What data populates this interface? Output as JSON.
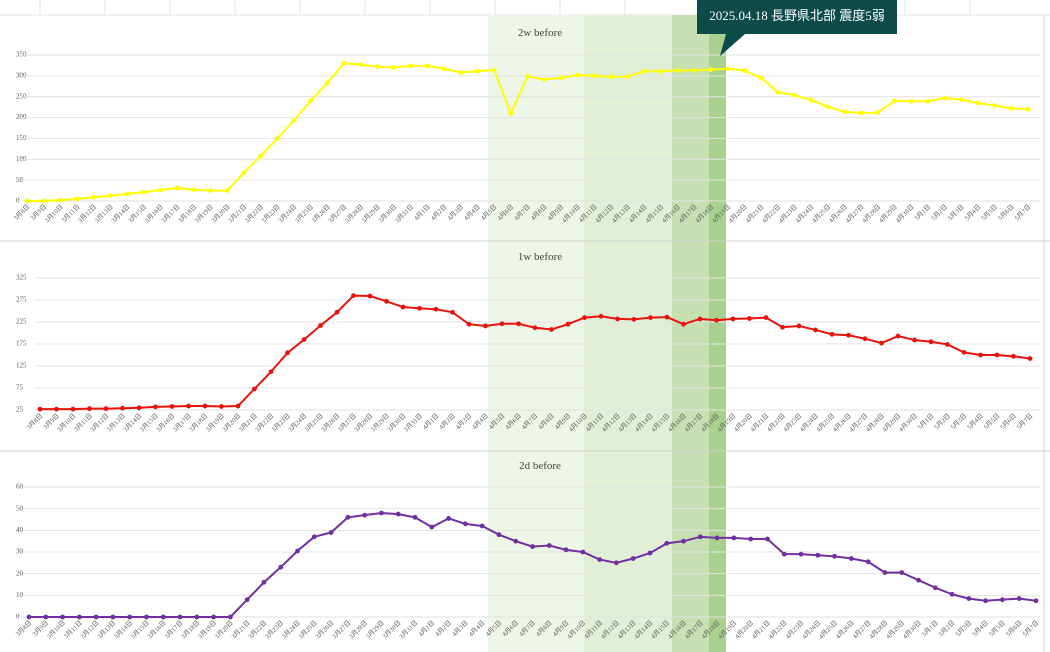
{
  "annotation": "2025.04.18 長野県北部 震度5弱",
  "chart_data": [
    {
      "type": "line",
      "title": "2w before",
      "color": "#ffff00",
      "categories": [
        "3月8日",
        "3月9日",
        "3月10日",
        "3月11日",
        "3月12日",
        "3月13日",
        "3月14日",
        "3月15日",
        "3月16日",
        "3月17日",
        "3月18日",
        "3月19日",
        "3月20日",
        "3月21日",
        "3月22日",
        "3月23日",
        "3月24日",
        "3月25日",
        "3月26日",
        "3月27日",
        "3月28日",
        "3月29日",
        "3月30日",
        "3月31日",
        "4月1日",
        "4月2日",
        "4月3日",
        "4月4日",
        "4月5日",
        "4月6日",
        "4月7日",
        "4月8日",
        "4月9日",
        "4月10日",
        "4月11日",
        "4月12日",
        "4月13日",
        "4月14日",
        "4月15日",
        "4月16日",
        "4月17日",
        "4月18日",
        "4月19日",
        "4月20日",
        "4月21日",
        "4月22日",
        "4月23日",
        "4月24日",
        "4月25日",
        "4月26日",
        "4月27日",
        "4月28日",
        "4月29日",
        "4月30日",
        "5月1日",
        "5月2日",
        "5月3日",
        "5月4日",
        "5月5日",
        "5月6日",
        "5月7日"
      ],
      "values": [
        0,
        0,
        2,
        5,
        9,
        13,
        17,
        21,
        26,
        31,
        27,
        25,
        25,
        68,
        108,
        150,
        193,
        240,
        283,
        330,
        327,
        322,
        320,
        324,
        324,
        317,
        308,
        311,
        314,
        210,
        299,
        291,
        295,
        302,
        300,
        298,
        298,
        311,
        311,
        313,
        313,
        315,
        317,
        313,
        295,
        261,
        254,
        242,
        226,
        214,
        211,
        212,
        240,
        239,
        239,
        247,
        243,
        235,
        229,
        222,
        220
      ],
      "ylim": [
        0,
        350
      ],
      "yticks": [
        0,
        50,
        100,
        150,
        200,
        250,
        300,
        350
      ],
      "grid": true
    },
    {
      "type": "line",
      "title": "1w before",
      "color": "#e8140c",
      "categories": [
        "3月8日",
        "3月9日",
        "3月10日",
        "3月11日",
        "3月12日",
        "3月13日",
        "3月14日",
        "3月15日",
        "3月16日",
        "3月17日",
        "3月18日",
        "3月19日",
        "3月20日",
        "3月21日",
        "3月22日",
        "3月23日",
        "3月24日",
        "3月25日",
        "3月26日",
        "3月27日",
        "3月28日",
        "3月29日",
        "3月30日",
        "3月31日",
        "4月1日",
        "4月2日",
        "4月3日",
        "4月4日",
        "4月5日",
        "4月6日",
        "4月7日",
        "4月8日",
        "4月9日",
        "4月10日",
        "4月11日",
        "4月12日",
        "4月13日",
        "4月14日",
        "4月15日",
        "4月16日",
        "4月17日",
        "4月18日",
        "4月19日",
        "4月20日",
        "4月21日",
        "4月22日",
        "4月23日",
        "4月24日",
        "4月25日",
        "4月26日",
        "4月27日",
        "4月28日",
        "4月29日",
        "4月30日",
        "5月1日",
        "5月2日",
        "5月3日",
        "5月4日",
        "5月5日",
        "5月6日",
        "5月7日"
      ],
      "values": [
        27,
        27,
        27,
        28,
        28,
        29,
        30,
        32,
        33,
        34,
        34,
        33,
        34,
        73,
        112,
        155,
        185,
        217,
        247,
        285,
        284,
        272,
        259,
        256,
        254,
        247,
        220,
        216,
        221,
        221,
        212,
        208,
        220,
        235,
        238,
        232,
        231,
        235,
        236,
        220,
        232,
        229,
        232,
        233,
        235,
        213,
        216,
        207,
        197,
        195,
        187,
        177,
        193,
        184,
        180,
        174,
        156,
        150,
        150,
        147,
        142
      ],
      "ylim": [
        25,
        325
      ],
      "yticks": [
        25,
        75,
        125,
        175,
        225,
        275,
        325
      ],
      "grid": true
    },
    {
      "type": "line",
      "title": "2d before",
      "color": "#7030a0",
      "categories": [
        "3月8日",
        "3月9日",
        "3月10日",
        "3月11日",
        "3月12日",
        "3月13日",
        "3月14日",
        "3月15日",
        "3月16日",
        "3月17日",
        "3月18日",
        "3月19日",
        "3月20日",
        "3月21日",
        "3月22日",
        "3月23日",
        "3月24日",
        "3月25日",
        "3月26日",
        "3月27日",
        "3月28日",
        "3月29日",
        "3月30日",
        "3月31日",
        "4月1日",
        "4月2日",
        "4月3日",
        "4月4日",
        "4月5日",
        "4月6日",
        "4月7日",
        "4月8日",
        "4月9日",
        "4月10日",
        "4月11日",
        "4月12日",
        "4月13日",
        "4月14日",
        "4月15日",
        "4月16日",
        "4月17日",
        "4月18日",
        "4月19日",
        "4月20日",
        "4月21日",
        "4月22日",
        "4月23日",
        "4月24日",
        "4月25日",
        "4月26日",
        "4月27日",
        "4月28日",
        "4月29日",
        "4月30日",
        "5月1日",
        "5月2日",
        "5月3日",
        "5月4日",
        "5月5日",
        "5月6日",
        "5月7日"
      ],
      "values": [
        0,
        0,
        0,
        0,
        0,
        0,
        0,
        0,
        0,
        0,
        0,
        0,
        0,
        8,
        16,
        23,
        30.5,
        37,
        39,
        46,
        47,
        48,
        47.5,
        46,
        41.5,
        45.5,
        43,
        42,
        38,
        35,
        32.5,
        33,
        31,
        30,
        26.5,
        25,
        27,
        29.5,
        34,
        35,
        37,
        36.5,
        36.5,
        36,
        36,
        29,
        29,
        28.5,
        28,
        27,
        25.5,
        20.5,
        20.5,
        17,
        13.5,
        10.5,
        8.5,
        7.5,
        8,
        8.5,
        7.5
      ],
      "ylim": [
        0,
        60
      ],
      "yticks": [
        0,
        10,
        20,
        30,
        40,
        50,
        60
      ],
      "grid": true
    }
  ]
}
